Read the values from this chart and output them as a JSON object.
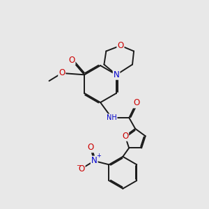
{
  "bg_color": "#e8e8e8",
  "bond_color": "#1a1a1a",
  "bond_width": 1.4,
  "dbo": 0.055,
  "atom_colors": {
    "C": "#1a1a1a",
    "N": "#0000cc",
    "O": "#cc0000",
    "H": "#777777"
  },
  "fs": 7.5
}
